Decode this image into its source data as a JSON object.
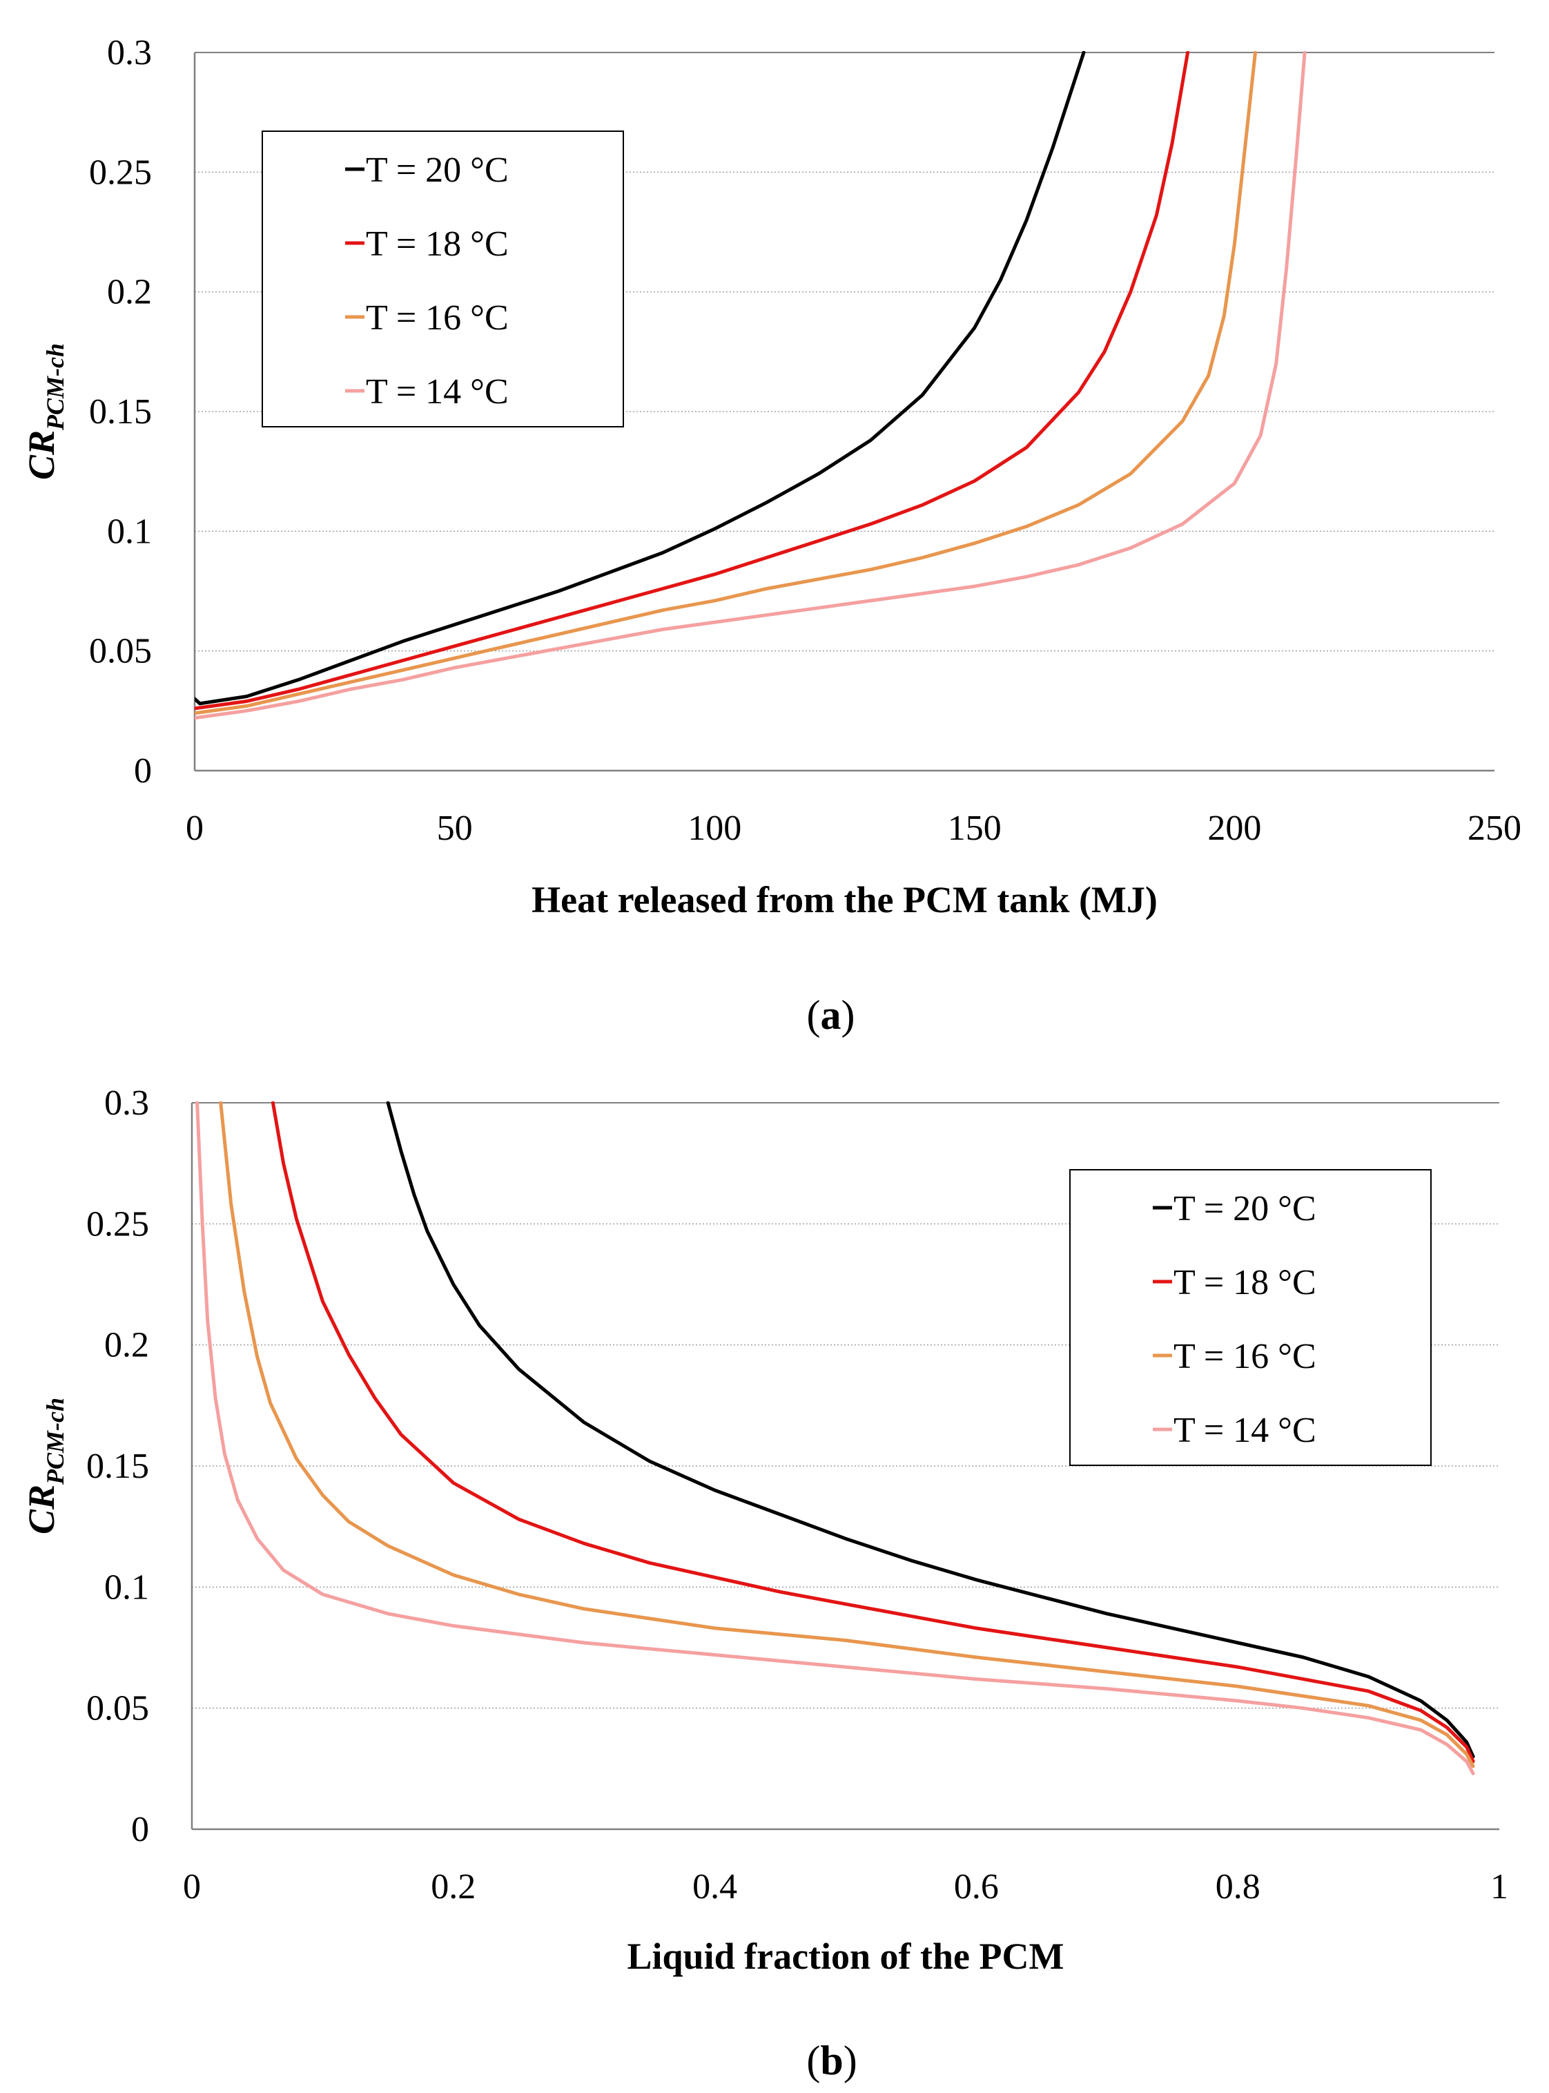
{
  "chart_data": [
    {
      "type": "line",
      "panel": "a",
      "caption": {
        "open": "(",
        "letter": "a",
        "close": ")"
      },
      "xlabel": "Heat released from the PCM tank (MJ)",
      "ylabel": {
        "main": "CR",
        "sub": "PCM-ch"
      },
      "xlim": [
        0,
        250
      ],
      "ylim": [
        0,
        0.3
      ],
      "xticks": [
        0,
        50,
        100,
        150,
        200,
        250
      ],
      "xtick_labels": [
        "0",
        "50",
        "100",
        "150",
        "200",
        "250"
      ],
      "yticks": [
        0,
        0.05,
        0.1,
        0.15,
        0.2,
        0.25,
        0.3
      ],
      "ytick_labels": [
        "0",
        "0.05",
        "0.1",
        "0.15",
        "0.2",
        "0.25",
        "0.3"
      ],
      "grid": true,
      "legend_position": "top-left",
      "series": [
        {
          "name": "T = 20 °C",
          "color": "#000000",
          "points": [
            [
              0,
              0.03
            ],
            [
              1,
              0.028
            ],
            [
              10,
              0.031
            ],
            [
              20,
              0.038
            ],
            [
              30,
              0.046
            ],
            [
              40,
              0.054
            ],
            [
              50,
              0.061
            ],
            [
              60,
              0.068
            ],
            [
              70,
              0.075
            ],
            [
              80,
              0.083
            ],
            [
              90,
              0.091
            ],
            [
              100,
              0.101
            ],
            [
              110,
              0.112
            ],
            [
              120,
              0.124
            ],
            [
              130,
              0.138
            ],
            [
              140,
              0.157
            ],
            [
              150,
              0.185
            ],
            [
              155,
              0.205
            ],
            [
              160,
              0.23
            ],
            [
              165,
              0.26
            ],
            [
              168,
              0.28
            ],
            [
              171,
              0.3
            ]
          ]
        },
        {
          "name": "T = 18 °C",
          "color": "#e31414",
          "points": [
            [
              0,
              0.026
            ],
            [
              10,
              0.029
            ],
            [
              20,
              0.034
            ],
            [
              30,
              0.04
            ],
            [
              40,
              0.046
            ],
            [
              50,
              0.052
            ],
            [
              60,
              0.058
            ],
            [
              70,
              0.064
            ],
            [
              80,
              0.07
            ],
            [
              90,
              0.076
            ],
            [
              100,
              0.082
            ],
            [
              110,
              0.089
            ],
            [
              120,
              0.096
            ],
            [
              130,
              0.103
            ],
            [
              140,
              0.111
            ],
            [
              150,
              0.121
            ],
            [
              160,
              0.135
            ],
            [
              170,
              0.158
            ],
            [
              175,
              0.175
            ],
            [
              180,
              0.2
            ],
            [
              185,
              0.232
            ],
            [
              188,
              0.262
            ],
            [
              191,
              0.3
            ]
          ]
        },
        {
          "name": "T = 16 °C",
          "color": "#e8964e",
          "points": [
            [
              0,
              0.024
            ],
            [
              10,
              0.027
            ],
            [
              20,
              0.032
            ],
            [
              30,
              0.037
            ],
            [
              40,
              0.042
            ],
            [
              50,
              0.047
            ],
            [
              60,
              0.052
            ],
            [
              70,
              0.057
            ],
            [
              80,
              0.062
            ],
            [
              90,
              0.067
            ],
            [
              100,
              0.071
            ],
            [
              110,
              0.076
            ],
            [
              120,
              0.08
            ],
            [
              130,
              0.084
            ],
            [
              140,
              0.089
            ],
            [
              150,
              0.095
            ],
            [
              160,
              0.102
            ],
            [
              170,
              0.111
            ],
            [
              180,
              0.124
            ],
            [
              190,
              0.146
            ],
            [
              195,
              0.165
            ],
            [
              198,
              0.19
            ],
            [
              200,
              0.22
            ],
            [
              202,
              0.26
            ],
            [
              204,
              0.3
            ]
          ]
        },
        {
          "name": "T = 14 °C",
          "color": "#f5a0a0",
          "points": [
            [
              0,
              0.022
            ],
            [
              10,
              0.025
            ],
            [
              20,
              0.029
            ],
            [
              30,
              0.034
            ],
            [
              40,
              0.038
            ],
            [
              50,
              0.043
            ],
            [
              60,
              0.047
            ],
            [
              70,
              0.051
            ],
            [
              80,
              0.055
            ],
            [
              90,
              0.059
            ],
            [
              100,
              0.062
            ],
            [
              110,
              0.065
            ],
            [
              120,
              0.068
            ],
            [
              130,
              0.071
            ],
            [
              140,
              0.074
            ],
            [
              150,
              0.077
            ],
            [
              160,
              0.081
            ],
            [
              170,
              0.086
            ],
            [
              180,
              0.093
            ],
            [
              190,
              0.103
            ],
            [
              200,
              0.12
            ],
            [
              205,
              0.14
            ],
            [
              208,
              0.17
            ],
            [
              210,
              0.21
            ],
            [
              212,
              0.26
            ],
            [
              213.5,
              0.3
            ]
          ]
        }
      ]
    },
    {
      "type": "line",
      "panel": "b",
      "caption": {
        "open": "(",
        "letter": "b",
        "close": ")"
      },
      "xlabel": "Liquid fraction of the PCM",
      "ylabel": {
        "main": "CR",
        "sub": "PCM-ch"
      },
      "xlim": [
        0,
        1
      ],
      "ylim": [
        0,
        0.3
      ],
      "xticks": [
        0,
        0.2,
        0.4,
        0.6,
        0.8,
        1
      ],
      "xtick_labels": [
        "0",
        "0.2",
        "0.4",
        "0.6",
        "0.8",
        "1"
      ],
      "yticks": [
        0,
        0.05,
        0.1,
        0.15,
        0.2,
        0.25,
        0.3
      ],
      "ytick_labels": [
        "0",
        "0.05",
        "0.1",
        "0.15",
        "0.2",
        "0.25",
        "0.3"
      ],
      "grid": true,
      "legend_position": "top-right",
      "series": [
        {
          "name": "T = 20 °C",
          "color": "#000000",
          "points": [
            [
              0.15,
              0.3
            ],
            [
              0.16,
              0.28
            ],
            [
              0.17,
              0.262
            ],
            [
              0.18,
              0.247
            ],
            [
              0.2,
              0.225
            ],
            [
              0.22,
              0.208
            ],
            [
              0.25,
              0.19
            ],
            [
              0.3,
              0.168
            ],
            [
              0.35,
              0.152
            ],
            [
              0.4,
              0.14
            ],
            [
              0.45,
              0.13
            ],
            [
              0.5,
              0.12
            ],
            [
              0.55,
              0.111
            ],
            [
              0.6,
              0.103
            ],
            [
              0.65,
              0.096
            ],
            [
              0.7,
              0.089
            ],
            [
              0.75,
              0.083
            ],
            [
              0.8,
              0.077
            ],
            [
              0.85,
              0.071
            ],
            [
              0.9,
              0.063
            ],
            [
              0.94,
              0.053
            ],
            [
              0.96,
              0.045
            ],
            [
              0.975,
              0.036
            ],
            [
              0.98,
              0.03
            ]
          ]
        },
        {
          "name": "T = 18 °C",
          "color": "#e31414",
          "points": [
            [
              0.062,
              0.3
            ],
            [
              0.07,
              0.275
            ],
            [
              0.08,
              0.252
            ],
            [
              0.09,
              0.235
            ],
            [
              0.1,
              0.218
            ],
            [
              0.12,
              0.196
            ],
            [
              0.14,
              0.178
            ],
            [
              0.16,
              0.163
            ],
            [
              0.2,
              0.143
            ],
            [
              0.25,
              0.128
            ],
            [
              0.3,
              0.118
            ],
            [
              0.35,
              0.11
            ],
            [
              0.4,
              0.104
            ],
            [
              0.45,
              0.098
            ],
            [
              0.5,
              0.093
            ],
            [
              0.55,
              0.088
            ],
            [
              0.6,
              0.083
            ],
            [
              0.65,
              0.079
            ],
            [
              0.7,
              0.075
            ],
            [
              0.75,
              0.071
            ],
            [
              0.8,
              0.067
            ],
            [
              0.85,
              0.062
            ],
            [
              0.9,
              0.057
            ],
            [
              0.94,
              0.049
            ],
            [
              0.96,
              0.042
            ],
            [
              0.975,
              0.034
            ],
            [
              0.98,
              0.028
            ]
          ]
        },
        {
          "name": "T = 16 °C",
          "color": "#e8964e",
          "points": [
            [
              0.022,
              0.3
            ],
            [
              0.03,
              0.258
            ],
            [
              0.04,
              0.222
            ],
            [
              0.05,
              0.195
            ],
            [
              0.06,
              0.176
            ],
            [
              0.08,
              0.153
            ],
            [
              0.1,
              0.138
            ],
            [
              0.12,
              0.127
            ],
            [
              0.15,
              0.117
            ],
            [
              0.2,
              0.105
            ],
            [
              0.25,
              0.097
            ],
            [
              0.3,
              0.091
            ],
            [
              0.35,
              0.087
            ],
            [
              0.4,
              0.083
            ],
            [
              0.5,
              0.078
            ],
            [
              0.6,
              0.071
            ],
            [
              0.7,
              0.065
            ],
            [
              0.8,
              0.059
            ],
            [
              0.85,
              0.055
            ],
            [
              0.9,
              0.051
            ],
            [
              0.94,
              0.045
            ],
            [
              0.96,
              0.039
            ],
            [
              0.975,
              0.031
            ],
            [
              0.98,
              0.026
            ]
          ]
        },
        {
          "name": "T = 14 °C",
          "color": "#f5a0a0",
          "points": [
            [
              0.004,
              0.3
            ],
            [
              0.008,
              0.25
            ],
            [
              0.012,
              0.21
            ],
            [
              0.018,
              0.178
            ],
            [
              0.025,
              0.155
            ],
            [
              0.035,
              0.136
            ],
            [
              0.05,
              0.12
            ],
            [
              0.07,
              0.107
            ],
            [
              0.1,
              0.097
            ],
            [
              0.15,
              0.089
            ],
            [
              0.2,
              0.084
            ],
            [
              0.3,
              0.077
            ],
            [
              0.4,
              0.072
            ],
            [
              0.5,
              0.067
            ],
            [
              0.6,
              0.062
            ],
            [
              0.7,
              0.058
            ],
            [
              0.8,
              0.053
            ],
            [
              0.85,
              0.05
            ],
            [
              0.9,
              0.046
            ],
            [
              0.94,
              0.041
            ],
            [
              0.96,
              0.035
            ],
            [
              0.975,
              0.028
            ],
            [
              0.98,
              0.023
            ]
          ]
        }
      ]
    }
  ]
}
